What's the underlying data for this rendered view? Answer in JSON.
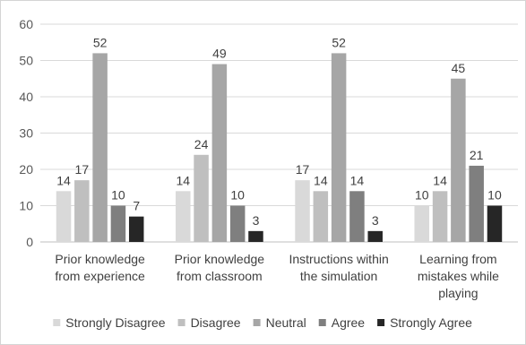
{
  "chart_data": {
    "type": "bar",
    "title": "",
    "xlabel": "",
    "ylabel": "",
    "ylim": [
      0,
      60
    ],
    "yticks": [
      0,
      10,
      20,
      30,
      40,
      50,
      60
    ],
    "grid": true,
    "legend_position": "bottom",
    "categories": [
      [
        "Prior knowledge",
        "from experience"
      ],
      [
        "Prior knowledge",
        "from classroom"
      ],
      [
        "Instructions within",
        "the simulation"
      ],
      [
        "Learning from",
        "mistakes while",
        "playing"
      ]
    ],
    "series": [
      {
        "name": "Strongly Disagree",
        "color": "#d9d9d9",
        "values": [
          14,
          14,
          17,
          10
        ]
      },
      {
        "name": "Disagree",
        "color": "#bfbfbf",
        "values": [
          17,
          24,
          14,
          14
        ]
      },
      {
        "name": "Neutral",
        "color": "#a6a6a6",
        "values": [
          52,
          49,
          52,
          45
        ]
      },
      {
        "name": "Agree",
        "color": "#7f7f7f",
        "values": [
          10,
          10,
          14,
          21
        ]
      },
      {
        "name": "Strongly Agree",
        "color": "#262626",
        "values": [
          7,
          3,
          3,
          10
        ]
      }
    ]
  }
}
